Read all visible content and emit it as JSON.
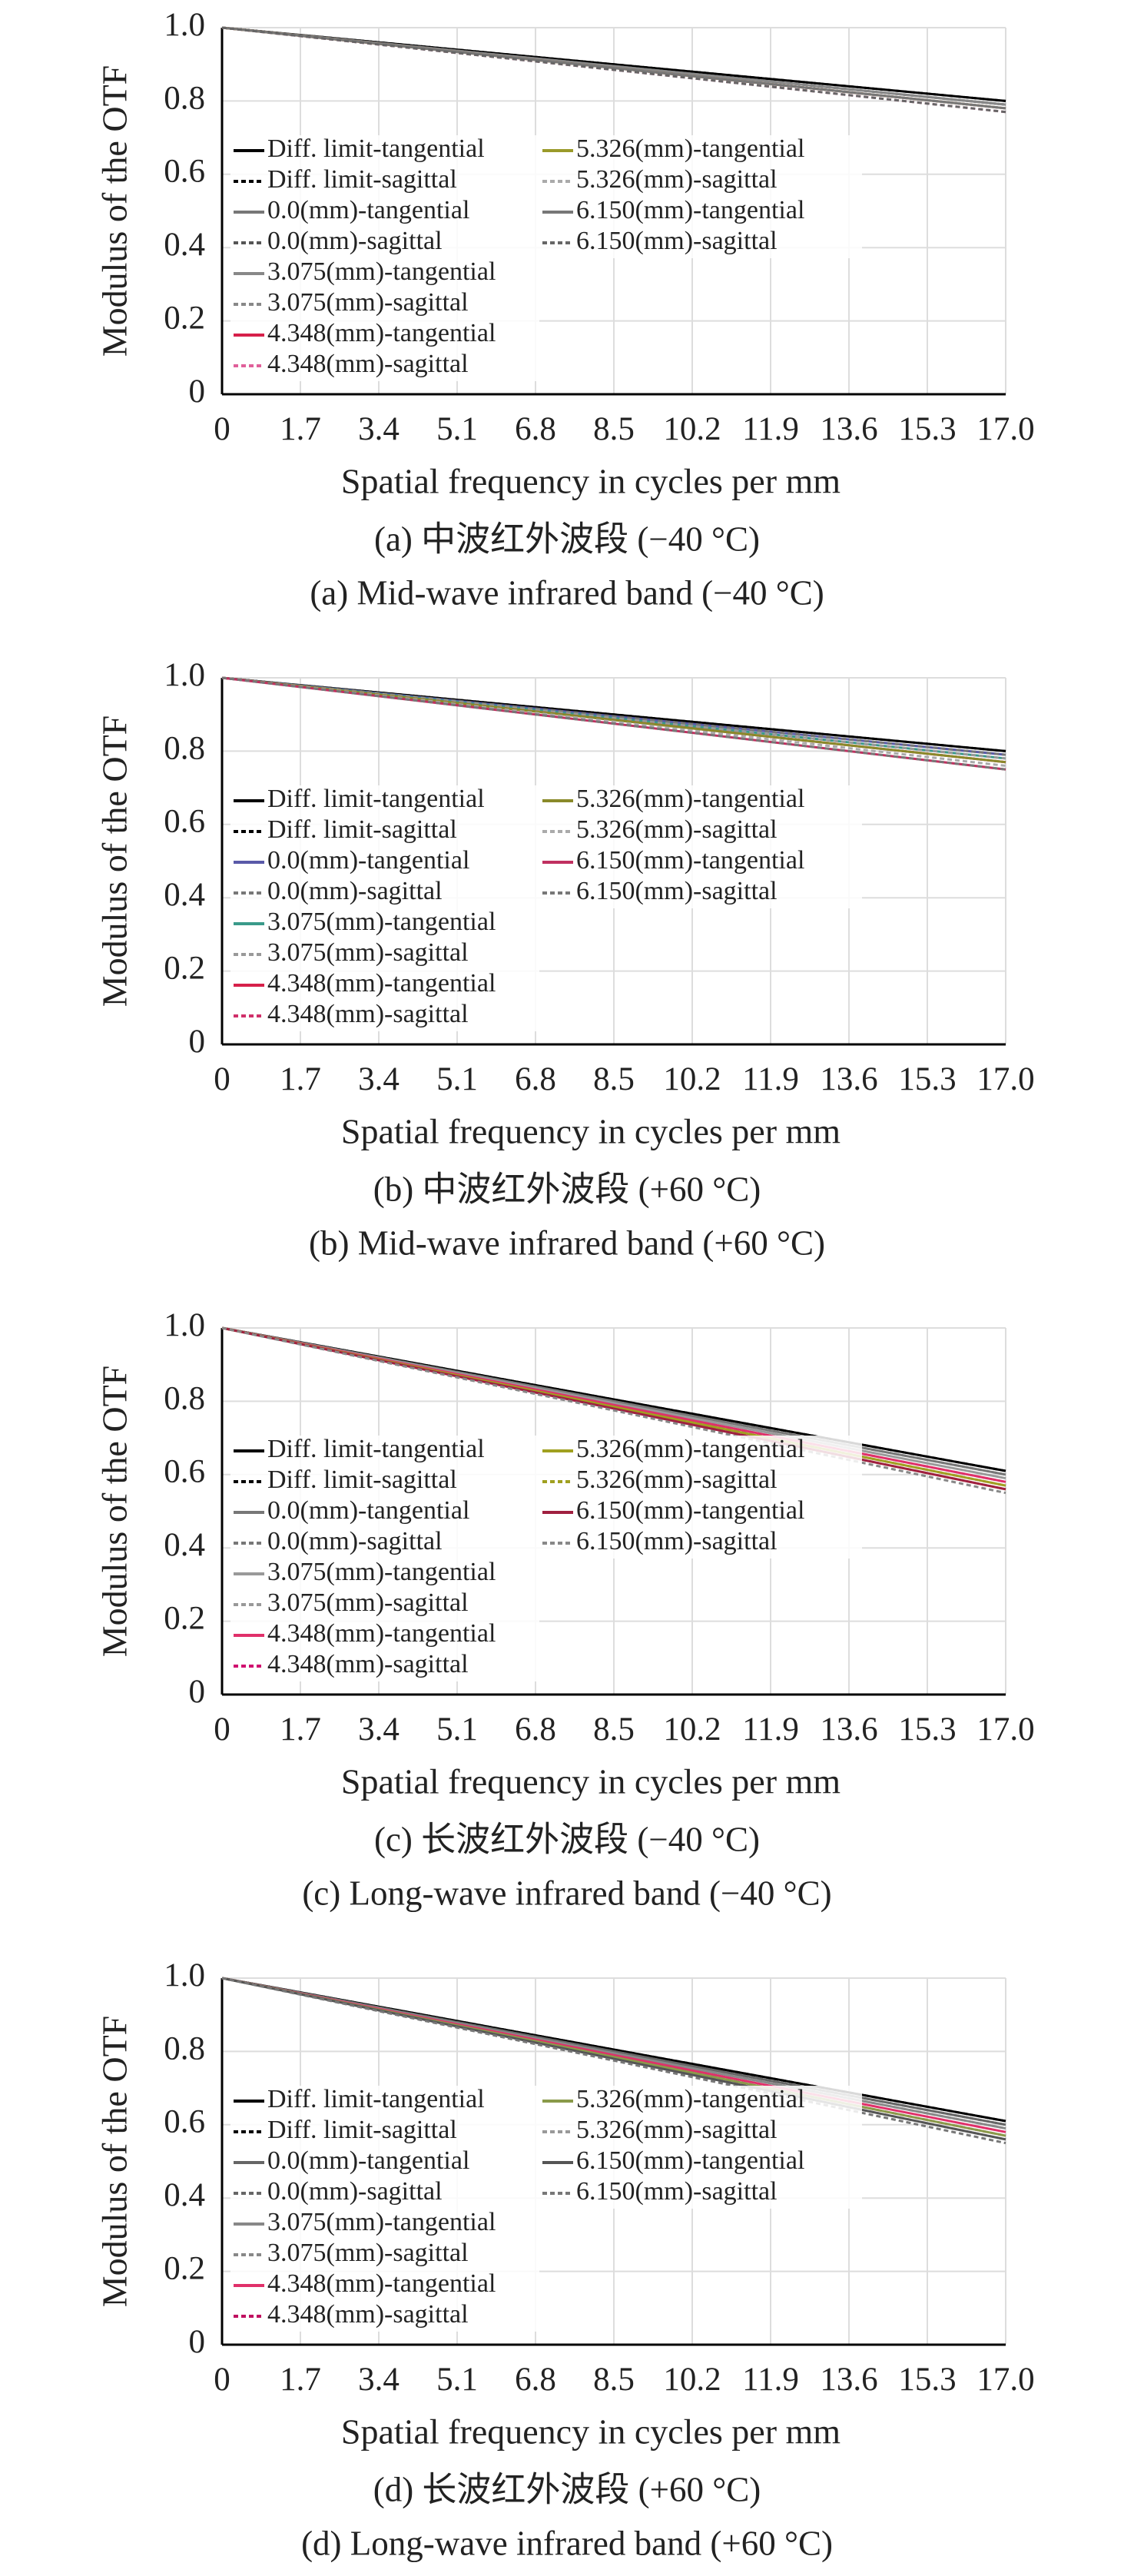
{
  "chart_data": [
    {
      "type": "line",
      "ylabel": "Modulus of the OTF",
      "xlabel": "Spatial frequency in cycles per mm",
      "caption_cn": "(a) 中波红外波段 (−40 °C)",
      "caption_en": "(a) Mid-wave infrared band (−40 °C)",
      "x": [
        0,
        8.5,
        17
      ],
      "xlim": [
        0,
        17
      ],
      "ylim": [
        0,
        1
      ],
      "grid": true,
      "legend": "center left",
      "xticks": [
        0,
        1.7,
        3.4,
        5.1,
        6.8,
        8.5,
        10.2,
        11.9,
        13.6,
        15.3,
        {
          "value": 17,
          "label": "17.0"
        }
      ],
      "yticks": [
        0,
        0.2,
        0.4,
        0.6,
        0.8,
        {
          "value": 1,
          "label": "1.0"
        }
      ],
      "series": [
        {
          "name": "Diff. limit-tangential",
          "color": "#000000",
          "dashed": false,
          "values": [
            1,
            0.9,
            0.8
          ]
        },
        {
          "name": "Diff. limit-sagittal",
          "color": "#000000",
          "dashed": true,
          "values": [
            1,
            0.9,
            0.8
          ]
        },
        {
          "name": "0.0(mm)-tangential",
          "color": "#777777",
          "dashed": false,
          "values": [
            1,
            0.895,
            0.79
          ]
        },
        {
          "name": "0.0(mm)-sagittal",
          "color": "#555555",
          "dashed": true,
          "values": [
            1,
            0.895,
            0.79
          ]
        },
        {
          "name": "3.075(mm)-tangential",
          "color": "#888888",
          "dashed": false,
          "values": [
            1,
            0.895,
            0.79
          ]
        },
        {
          "name": "3.075(mm)-sagittal",
          "color": "#888888",
          "dashed": true,
          "values": [
            1,
            0.89,
            0.78
          ]
        },
        {
          "name": "4.348(mm)-tangential",
          "color": "#d6204a",
          "dashed": false,
          "values": [
            1,
            0.89,
            0.78
          ]
        },
        {
          "name": "4.348(mm)-sagittal",
          "color": "#e0609a",
          "dashed": true,
          "values": [
            1,
            0.885,
            0.77
          ]
        },
        {
          "name": "5.326(mm)-tangential",
          "color": "#9a9a2a",
          "dashed": false,
          "values": [
            1,
            0.89,
            0.78
          ]
        },
        {
          "name": "5.326(mm)-sagittal",
          "color": "#aaaaaa",
          "dashed": true,
          "values": [
            1,
            0.89,
            0.78
          ]
        },
        {
          "name": "6.150(mm)-tangential",
          "color": "#777777",
          "dashed": false,
          "values": [
            1,
            0.89,
            0.78
          ]
        },
        {
          "name": "6.150(mm)-sagittal",
          "color": "#666666",
          "dashed": true,
          "values": [
            1,
            0.885,
            0.77
          ]
        }
      ]
    },
    {
      "type": "line",
      "ylabel": "Modulus of the OTF",
      "xlabel": "Spatial frequency in cycles per mm",
      "caption_cn": "(b) 中波红外波段 (+60 °C)",
      "caption_en": "(b) Mid-wave infrared band (+60 °C)",
      "x": [
        0,
        8.5,
        17
      ],
      "xlim": [
        0,
        17
      ],
      "ylim": [
        0,
        1
      ],
      "grid": true,
      "legend": "center left",
      "xticks": [
        0,
        1.7,
        3.4,
        5.1,
        6.8,
        8.5,
        10.2,
        11.9,
        13.6,
        15.3,
        {
          "value": 17,
          "label": "17.0"
        }
      ],
      "yticks": [
        0,
        0.2,
        0.4,
        0.6,
        0.8,
        {
          "value": 1,
          "label": "1.0"
        }
      ],
      "series": [
        {
          "name": "Diff. limit-tangential",
          "color": "#000000",
          "dashed": false,
          "values": [
            1,
            0.9,
            0.8
          ]
        },
        {
          "name": "Diff. limit-sagittal",
          "color": "#000000",
          "dashed": true,
          "values": [
            1,
            0.9,
            0.8
          ]
        },
        {
          "name": "0.0(mm)-tangential",
          "color": "#5a5aa8",
          "dashed": false,
          "values": [
            1,
            0.895,
            0.79
          ]
        },
        {
          "name": "0.0(mm)-sagittal",
          "color": "#777777",
          "dashed": true,
          "values": [
            1,
            0.895,
            0.79
          ]
        },
        {
          "name": "3.075(mm)-tangential",
          "color": "#3a9a8a",
          "dashed": false,
          "values": [
            1,
            0.89,
            0.78
          ]
        },
        {
          "name": "3.075(mm)-sagittal",
          "color": "#999999",
          "dashed": true,
          "values": [
            1,
            0.89,
            0.78
          ]
        },
        {
          "name": "4.348(mm)-tangential",
          "color": "#d6204a",
          "dashed": false,
          "values": [
            1,
            0.885,
            0.77
          ]
        },
        {
          "name": "4.348(mm)-sagittal",
          "color": "#d0306a",
          "dashed": true,
          "values": [
            1,
            0.885,
            0.77
          ]
        },
        {
          "name": "5.326(mm)-tangential",
          "color": "#8a8a2a",
          "dashed": false,
          "values": [
            1,
            0.885,
            0.77
          ]
        },
        {
          "name": "5.326(mm)-sagittal",
          "color": "#aaaaaa",
          "dashed": true,
          "values": [
            1,
            0.88,
            0.76
          ]
        },
        {
          "name": "6.150(mm)-tangential",
          "color": "#c03060",
          "dashed": false,
          "values": [
            1,
            0.875,
            0.75
          ]
        },
        {
          "name": "6.150(mm)-sagittal",
          "color": "#777777",
          "dashed": true,
          "values": [
            1,
            0.875,
            0.75
          ]
        }
      ]
    },
    {
      "type": "line",
      "ylabel": "Modulus of the OTF",
      "xlabel": "Spatial frequency in cycles per mm",
      "caption_cn": "(c) 长波红外波段 (−40 °C)",
      "caption_en": "(c) Long-wave infrared band (−40 °C)",
      "x": [
        0,
        8.5,
        17
      ],
      "xlim": [
        0,
        17
      ],
      "ylim": [
        0,
        1
      ],
      "grid": true,
      "legend": "center left",
      "xticks": [
        0,
        1.7,
        3.4,
        5.1,
        6.8,
        8.5,
        10.2,
        11.9,
        13.6,
        15.3,
        {
          "value": 17,
          "label": "17.0"
        }
      ],
      "yticks": [
        0,
        0.2,
        0.4,
        0.6,
        0.8,
        {
          "value": 1,
          "label": "1.0"
        }
      ],
      "series": [
        {
          "name": "Diff. limit-tangential",
          "color": "#000000",
          "dashed": false,
          "values": [
            1,
            0.805,
            0.61
          ]
        },
        {
          "name": "Diff. limit-sagittal",
          "color": "#000000",
          "dashed": true,
          "values": [
            1,
            0.805,
            0.61
          ]
        },
        {
          "name": "0.0(mm)-tangential",
          "color": "#777777",
          "dashed": false,
          "values": [
            1,
            0.8,
            0.6
          ]
        },
        {
          "name": "0.0(mm)-sagittal",
          "color": "#777777",
          "dashed": true,
          "values": [
            1,
            0.8,
            0.6
          ]
        },
        {
          "name": "3.075(mm)-tangential",
          "color": "#999999",
          "dashed": false,
          "values": [
            1,
            0.795,
            0.59
          ]
        },
        {
          "name": "3.075(mm)-sagittal",
          "color": "#999999",
          "dashed": true,
          "values": [
            1,
            0.79,
            0.58
          ]
        },
        {
          "name": "4.348(mm)-tangential",
          "color": "#e0306a",
          "dashed": false,
          "values": [
            1,
            0.79,
            0.58
          ]
        },
        {
          "name": "4.348(mm)-sagittal",
          "color": "#d01070",
          "dashed": true,
          "values": [
            1,
            0.785,
            0.57
          ]
        },
        {
          "name": "5.326(mm)-tangential",
          "color": "#a0a020",
          "dashed": false,
          "values": [
            1,
            0.785,
            0.57
          ]
        },
        {
          "name": "5.326(mm)-sagittal",
          "color": "#a0a020",
          "dashed": true,
          "values": [
            1,
            0.78,
            0.56
          ]
        },
        {
          "name": "6.150(mm)-tangential",
          "color": "#a02040",
          "dashed": false,
          "values": [
            1,
            0.78,
            0.56
          ]
        },
        {
          "name": "6.150(mm)-sagittal",
          "color": "#888888",
          "dashed": true,
          "values": [
            1,
            0.775,
            0.55
          ]
        }
      ]
    },
    {
      "type": "line",
      "ylabel": "Modulus of the OTF",
      "xlabel": "Spatial frequency in cycles per mm",
      "caption_cn": "(d) 长波红外波段 (+60 °C)",
      "caption_en": "(d) Long-wave infrared band (+60 °C)",
      "x": [
        0,
        8.5,
        17
      ],
      "xlim": [
        0,
        17
      ],
      "ylim": [
        0,
        1
      ],
      "grid": true,
      "legend": "center left",
      "xticks": [
        0,
        1.7,
        3.4,
        5.1,
        6.8,
        8.5,
        10.2,
        11.9,
        13.6,
        15.3,
        {
          "value": 17,
          "label": "17.0"
        }
      ],
      "yticks": [
        0,
        0.2,
        0.4,
        0.6,
        0.8,
        {
          "value": 1,
          "label": "1.0"
        }
      ],
      "series": [
        {
          "name": "Diff. limit-tangential",
          "color": "#000000",
          "dashed": false,
          "values": [
            1,
            0.805,
            0.61
          ]
        },
        {
          "name": "Diff. limit-sagittal",
          "color": "#000000",
          "dashed": true,
          "values": [
            1,
            0.805,
            0.61
          ]
        },
        {
          "name": "0.0(mm)-tangential",
          "color": "#666666",
          "dashed": false,
          "values": [
            1,
            0.8,
            0.6
          ]
        },
        {
          "name": "0.0(mm)-sagittal",
          "color": "#666666",
          "dashed": true,
          "values": [
            1,
            0.8,
            0.6
          ]
        },
        {
          "name": "3.075(mm)-tangential",
          "color": "#888888",
          "dashed": false,
          "values": [
            1,
            0.795,
            0.59
          ]
        },
        {
          "name": "3.075(mm)-sagittal",
          "color": "#888888",
          "dashed": true,
          "values": [
            1,
            0.795,
            0.59
          ]
        },
        {
          "name": "4.348(mm)-tangential",
          "color": "#e0306a",
          "dashed": false,
          "values": [
            1,
            0.79,
            0.58
          ]
        },
        {
          "name": "4.348(mm)-sagittal",
          "color": "#c01060",
          "dashed": true,
          "values": [
            1,
            0.785,
            0.57
          ]
        },
        {
          "name": "5.326(mm)-tangential",
          "color": "#8a9a4a",
          "dashed": false,
          "values": [
            1,
            0.785,
            0.57
          ]
        },
        {
          "name": "5.326(mm)-sagittal",
          "color": "#999999",
          "dashed": true,
          "values": [
            1,
            0.78,
            0.56
          ]
        },
        {
          "name": "6.150(mm)-tangential",
          "color": "#555555",
          "dashed": false,
          "values": [
            1,
            0.78,
            0.56
          ]
        },
        {
          "name": "6.150(mm)-sagittal",
          "color": "#777777",
          "dashed": true,
          "values": [
            1,
            0.775,
            0.55
          ]
        }
      ]
    }
  ]
}
